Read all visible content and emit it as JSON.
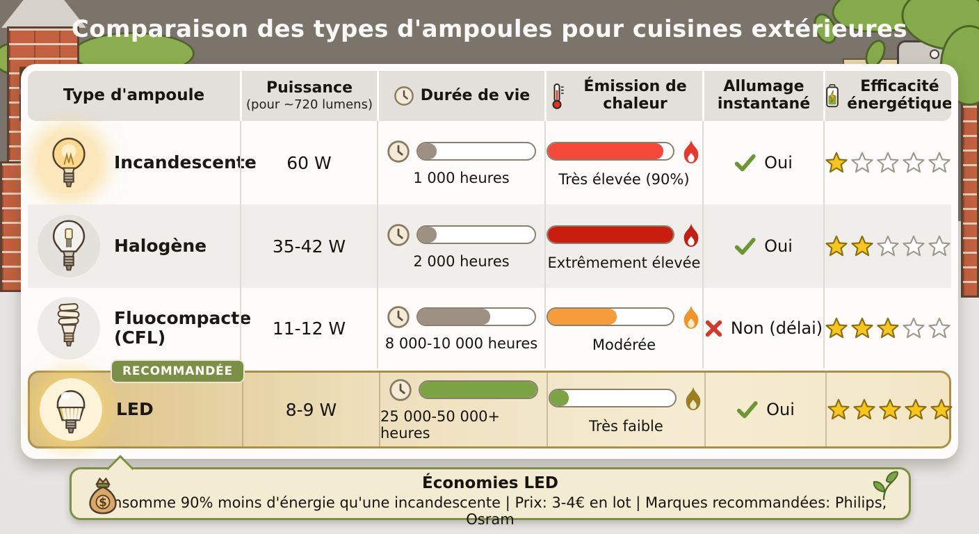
{
  "title": "Comparaison des types d'ampoules pour cuisines extérieures",
  "badge_label": "RECOMMANDÉE",
  "colors": {
    "life_bar_fill": "#9c9183",
    "led_highlight_border": "#ab8f49",
    "badge_green": "#7b8f47",
    "star_fill": "#f6c51e",
    "check_green": "#6a9733",
    "cross_red": "#d23a2b"
  },
  "table": {
    "columns": [
      {
        "label": "Type d'ampoule"
      },
      {
        "label": "Puissance",
        "sublabel": "(pour ~720 lumens)"
      },
      {
        "label": "Durée de vie",
        "icon": "clock-icon"
      },
      {
        "label": "Émission de chaleur",
        "icon": "thermometer-icon"
      },
      {
        "label": "Allumage instantané"
      },
      {
        "label": "Efficacité énergétique",
        "icon": "battery-icon"
      }
    ],
    "rows": [
      {
        "name": "Incandescente",
        "bulb_icon": "incandescent-bulb-icon",
        "power": "60 W",
        "lifespan": {
          "label": "1 000 heures",
          "percent": 8
        },
        "heat": {
          "label": "Très élevée (90%)",
          "percent": 92,
          "color": "#f4483a",
          "flame_color": "#e6392b",
          "flame_inner": "#ffffff"
        },
        "instant_on": {
          "label": "Oui",
          "ok": true
        },
        "stars": 1
      },
      {
        "name": "Halogène",
        "bulb_icon": "halogen-bulb-icon",
        "power": "35-42 W",
        "lifespan": {
          "label": "2 000 heures",
          "percent": 16
        },
        "heat": {
          "label": "Extrêmement élevée",
          "percent": 100,
          "color": "#c91d10",
          "flame_color": "#c01f12",
          "flame_inner": "#ffffff"
        },
        "instant_on": {
          "label": "Oui",
          "ok": true
        },
        "stars": 2
      },
      {
        "name": "Fluocompacte (CFL)",
        "bulb_icon": "cfl-bulb-icon",
        "power": "11-12 W",
        "lifespan": {
          "label": "8 000-10 000 heures",
          "percent": 62
        },
        "heat": {
          "label": "Modérée",
          "percent": 55,
          "color": "#f59d3c",
          "flame_color": "#ef9428",
          "flame_inner": "#fdeccb"
        },
        "instant_on": {
          "label": "Non (délai)",
          "ok": false
        },
        "stars": 3
      },
      {
        "name": "LED",
        "bulb_icon": "led-bulb-icon",
        "power": "8-9 W",
        "recommended": true,
        "lifespan": {
          "label": "25 000-50 000+ heures",
          "percent": 100,
          "color": "#7ca445"
        },
        "heat": {
          "label": "Très faible",
          "percent": 9,
          "color": "#7ca445",
          "flame_color": "#9a7e20",
          "flame_inner": "#efe6c8"
        },
        "instant_on": {
          "label": "Oui",
          "ok": true
        },
        "stars": 5
      }
    ]
  },
  "footer": {
    "title": "Économies LED",
    "text": "Consomme 90% moins d'énergie qu'une incandescente | Prix: 3-4€ en lot | Marques recommandées: Philips, Osram"
  },
  "chart_data": {
    "type": "table",
    "title": "Comparaison des types d'ampoules pour cuisines extérieures",
    "columns": [
      "Type d'ampoule",
      "Puissance (pour ~720 lumens)",
      "Durée de vie",
      "Émission de chaleur",
      "Allumage instantané",
      "Efficacité énergétique (étoiles / 5)"
    ],
    "rows": [
      [
        "Incandescente",
        "60 W",
        "1 000 heures",
        "Très élevée (90%)",
        "Oui",
        1
      ],
      [
        "Halogène",
        "35-42 W",
        "2 000 heures",
        "Extrêmement élevée",
        "Oui",
        2
      ],
      [
        "Fluocompacte (CFL)",
        "11-12 W",
        "8 000-10 000 heures",
        "Modérée",
        "Non (délai)",
        3
      ],
      [
        "LED",
        "8-9 W",
        "25 000-50 000+ heures",
        "Très faible",
        "Oui",
        5
      ]
    ],
    "recommended_row": "LED",
    "footnote": "Économies LED — Consomme 90% moins d'énergie qu'une incandescente | Prix: 3-4€ en lot | Marques recommandées: Philips, Osram"
  }
}
